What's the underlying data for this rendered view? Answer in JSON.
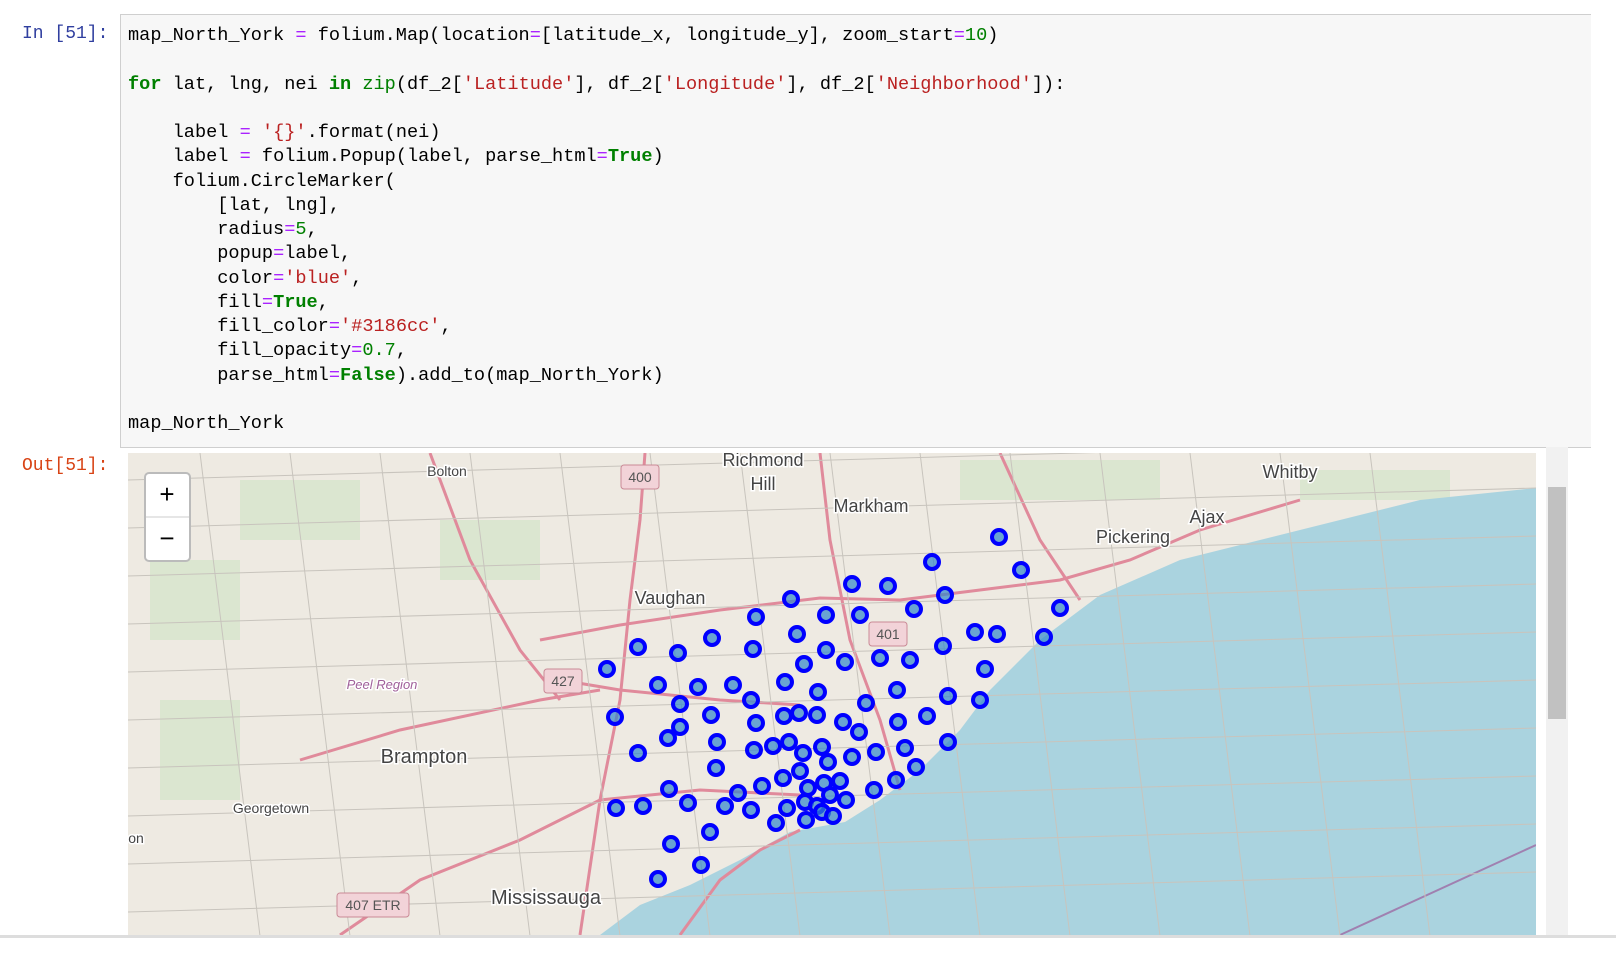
{
  "input": {
    "prompt": "In [51]:",
    "code": [
      [
        [
          "map_North_York ",
          {
            "text": "=",
            "color": "#aa22ff"
          },
          " folium.Map(location",
          {
            "text": "=",
            "color": "#aa22ff"
          },
          "[latitude_x, longitude_y], zoom_start",
          {
            "text": "=",
            "color": "#aa22ff"
          },
          {
            "text": "10",
            "color": "#008000"
          },
          ")"
        ]
      ],
      [
        [
          {
            "text": "for",
            "color": "#008000",
            "bold": true
          },
          " lat, lng, nei ",
          {
            "text": "in",
            "color": "#008000",
            "bold": true
          },
          " ",
          {
            "text": "zip",
            "color": "#008000"
          },
          "(df_2[",
          {
            "text": "'Latitude'",
            "color": "#ba2121"
          },
          "], df_2[",
          {
            "text": "'Longitude'",
            "color": "#ba2121"
          },
          "], df_2[",
          {
            "text": "'Neighborhood'",
            "color": "#ba2121"
          },
          "]):"
        ]
      ],
      [
        [
          "    label ",
          {
            "text": "=",
            "color": "#aa22ff"
          },
          " ",
          {
            "text": "'{}'",
            "color": "#ba2121"
          },
          ".format(nei)"
        ],
        [
          "    label ",
          {
            "text": "=",
            "color": "#aa22ff"
          },
          " folium.Popup(label, parse_html",
          {
            "text": "=",
            "color": "#aa22ff"
          },
          {
            "text": "True",
            "color": "#008000",
            "bold": true
          },
          ")"
        ],
        [
          "    folium.CircleMarker("
        ],
        [
          "        [lat, lng],"
        ],
        [
          "        radius",
          {
            "text": "=",
            "color": "#aa22ff"
          },
          {
            "text": "5",
            "color": "#008000"
          },
          ","
        ],
        [
          "        popup",
          {
            "text": "=",
            "color": "#aa22ff"
          },
          "label,"
        ],
        [
          "        color",
          {
            "text": "=",
            "color": "#aa22ff"
          },
          {
            "text": "'blue'",
            "color": "#ba2121"
          },
          ","
        ],
        [
          "        fill",
          {
            "text": "=",
            "color": "#aa22ff"
          },
          {
            "text": "True",
            "color": "#008000",
            "bold": true
          },
          ","
        ],
        [
          "        fill_color",
          {
            "text": "=",
            "color": "#aa22ff"
          },
          {
            "text": "'#3186cc'",
            "color": "#ba2121"
          },
          ","
        ],
        [
          "        fill_opacity",
          {
            "text": "=",
            "color": "#aa22ff"
          },
          {
            "text": "0.7",
            "color": "#008000"
          },
          ","
        ],
        [
          "        parse_html",
          {
            "text": "=",
            "color": "#aa22ff"
          },
          {
            "text": "False",
            "color": "#008000",
            "bold": true
          },
          ").add_to(map_North_York)"
        ]
      ],
      [
        [
          "map_North_York"
        ]
      ]
    ]
  },
  "output": {
    "prompt": "Out[51]:",
    "map": {
      "zoom_in": "+",
      "zoom_out": "−",
      "places": [
        "Richmond",
        "Hill",
        "Bolton",
        "Markham",
        "Whitby",
        "Ajax",
        "Pickering",
        "Vaughan",
        "Peel Region",
        "Brampton",
        "Georgetown",
        "Mississauga",
        "on"
      ],
      "shields": [
        "400",
        "401",
        "427",
        "407 ETR"
      ]
    }
  }
}
